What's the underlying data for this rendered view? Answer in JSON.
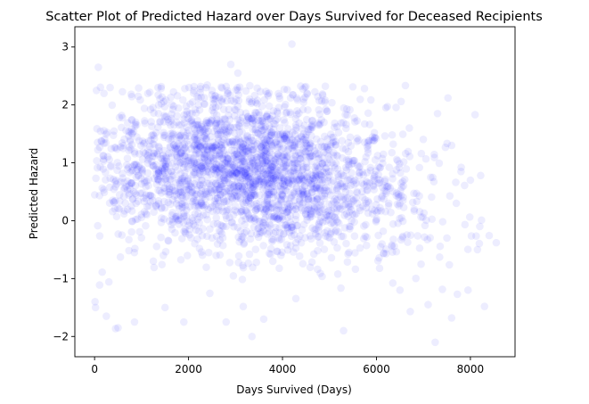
{
  "chart_data": {
    "type": "scatter",
    "title": "Scatter Plot of Predicted Hazard over Days Survived for Deceased Recipients",
    "xlabel": "Days Survived (Days)",
    "ylabel": "Predicted Hazard",
    "xlim": [
      -420,
      8950
    ],
    "ylim": [
      -2.35,
      3.35
    ],
    "xticks": [
      0,
      2000,
      4000,
      6000,
      8000
    ],
    "yticks": [
      -2,
      -1,
      0,
      1,
      2,
      3
    ],
    "grid": false,
    "legend": "none",
    "marker_color": "#0000ff",
    "marker_alpha": 0.07,
    "series": [
      {
        "points": [
          [
            80,
            2.65
          ],
          [
            330,
            2.3
          ],
          [
            2900,
            2.7
          ],
          [
            3050,
            2.55
          ],
          [
            4200,
            3.05
          ],
          [
            40,
            2.25
          ],
          [
            200,
            2.2
          ],
          [
            1350,
            2.3
          ],
          [
            2500,
            2.25
          ],
          [
            3300,
            2.1
          ],
          [
            4450,
            2.1
          ],
          [
            4900,
            2.05
          ],
          [
            6200,
            1.95
          ],
          [
            6700,
            1.6
          ],
          [
            7300,
            1.85
          ],
          [
            7600,
            1.3
          ],
          [
            8000,
            0.7
          ],
          [
            8550,
            -0.38
          ],
          [
            8150,
            -0.5
          ],
          [
            8300,
            -1.48
          ],
          [
            7950,
            -1.2
          ],
          [
            7600,
            -1.68
          ],
          [
            7250,
            -2.1
          ],
          [
            7100,
            -1.45
          ],
          [
            6500,
            -1.2
          ],
          [
            5300,
            -1.9
          ],
          [
            3350,
            -2.0
          ],
          [
            3600,
            -1.7
          ],
          [
            2800,
            -1.75
          ],
          [
            1900,
            -1.75
          ],
          [
            1500,
            -1.5
          ],
          [
            850,
            -1.75
          ],
          [
            500,
            -1.85
          ],
          [
            20,
            -1.5
          ],
          [
            10,
            -1.4
          ],
          [
            250,
            -1.65
          ],
          [
            7700,
            0.3
          ],
          [
            7500,
            -0.3
          ],
          [
            8200,
            -0.1
          ],
          [
            7800,
            0.85
          ]
        ]
      }
    ]
  }
}
